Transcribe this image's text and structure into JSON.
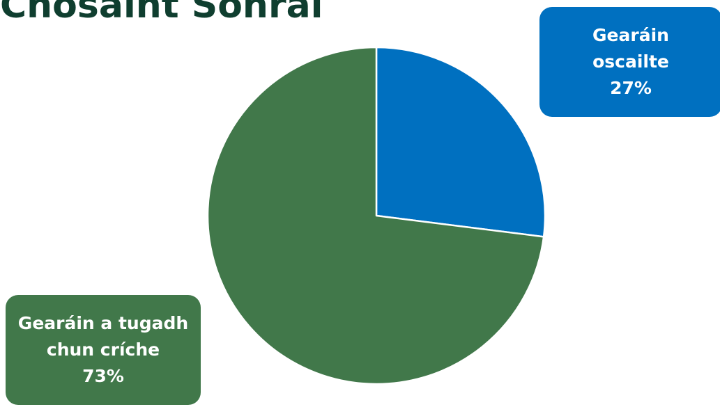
{
  "chart_data": {
    "type": "pie",
    "title": "Chosaint Sonraí",
    "slices": [
      {
        "label_lines": [
          "Gearáin",
          "oscailte"
        ],
        "value": 27,
        "value_label": "27%",
        "color": "#0070c0"
      },
      {
        "label_lines": [
          "Gearáin a tugadh",
          "chun críche"
        ],
        "value": 73,
        "value_label": "73%",
        "color": "#41784a"
      }
    ]
  }
}
